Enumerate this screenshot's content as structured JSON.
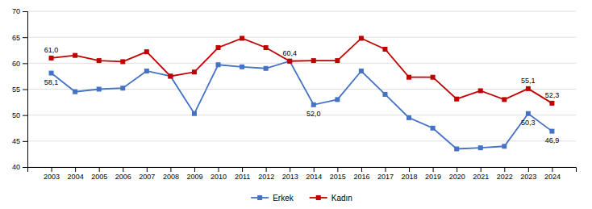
{
  "chart_data": {
    "type": "line",
    "x": [
      2003,
      2004,
      2005,
      2006,
      2007,
      2008,
      2009,
      2010,
      2011,
      2012,
      2013,
      2014,
      2015,
      2016,
      2017,
      2018,
      2019,
      2020,
      2021,
      2022,
      2023,
      2024
    ],
    "xlim": [
      2002,
      2025
    ],
    "xticks": [
      2003,
      2004,
      2005,
      2006,
      2007,
      2008,
      2009,
      2010,
      2011,
      2012,
      2013,
      2014,
      2015,
      2016,
      2017,
      2018,
      2019,
      2020,
      2021,
      2022,
      2023,
      2024
    ],
    "ylim": [
      40,
      70
    ],
    "yticks": [
      40,
      45,
      50,
      55,
      60,
      65,
      70
    ],
    "grid": true,
    "legend": "bottom",
    "series": [
      {
        "name": "Erkek",
        "color": "#4472C4",
        "marker": "square",
        "values": [
          58.1,
          54.5,
          55.0,
          55.2,
          58.5,
          57.5,
          50.3,
          59.7,
          59.3,
          59.0,
          60.4,
          52.0,
          53.0,
          58.5,
          54.0,
          49.5,
          47.5,
          43.5,
          43.7,
          44.0,
          50.3,
          46.9
        ],
        "value_labels": [
          "58,1",
          null,
          null,
          null,
          null,
          null,
          null,
          null,
          null,
          null,
          null,
          "52,0",
          null,
          null,
          null,
          null,
          null,
          null,
          null,
          null,
          "50,3",
          "46,9"
        ]
      },
      {
        "name": "Kadın",
        "color": "#C00000",
        "marker": "square",
        "values": [
          61.0,
          61.5,
          60.5,
          60.3,
          62.2,
          57.5,
          58.3,
          63.0,
          64.8,
          63.0,
          60.4,
          60.5,
          60.5,
          64.8,
          62.7,
          57.3,
          57.3,
          53.1,
          54.7,
          53.0,
          55.1,
          52.3
        ],
        "value_labels": [
          "61,0",
          null,
          null,
          null,
          null,
          null,
          null,
          null,
          null,
          null,
          "60,4",
          null,
          null,
          null,
          null,
          null,
          null,
          null,
          null,
          null,
          "55,1",
          "52,3"
        ]
      }
    ]
  }
}
